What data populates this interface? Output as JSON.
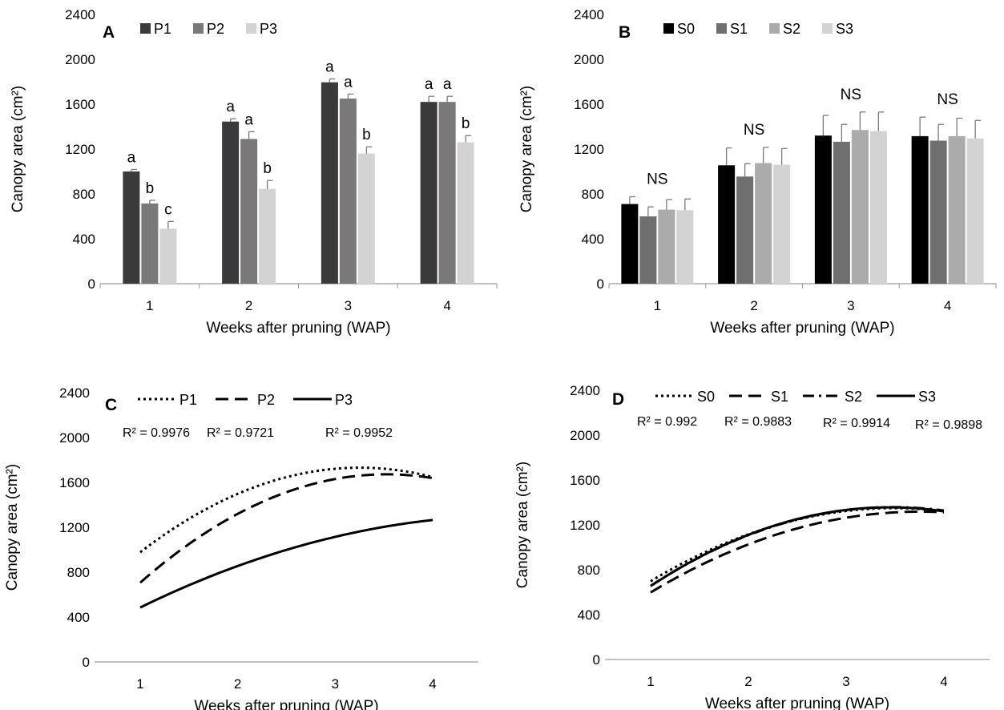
{
  "chart_data": [
    {
      "panel": "A",
      "type": "bar",
      "xlabel": "Weeks after pruning (WAP)",
      "ylabel": "Canopy area (cm²)",
      "ylim": [
        0,
        2400
      ],
      "yticks": [
        "0",
        "400",
        "800",
        "1200",
        "1600",
        "2000",
        "2400"
      ],
      "categories": [
        "1",
        "2",
        "3",
        "4"
      ],
      "legend_position": "top",
      "series": [
        {
          "name": "P1",
          "color": "#3a3a3c",
          "values": [
            1000,
            1445,
            1795,
            1620
          ],
          "errors": [
            18,
            25,
            30,
            50
          ],
          "letters": [
            "a",
            "a",
            "a",
            "a"
          ]
        },
        {
          "name": "P2",
          "color": "#7a7878",
          "values": [
            715,
            1290,
            1650,
            1620
          ],
          "errors": [
            28,
            65,
            40,
            50
          ],
          "letters": [
            "b",
            "a",
            "a",
            "a"
          ]
        },
        {
          "name": "P3",
          "color": "#d3d3d3",
          "values": [
            490,
            845,
            1160,
            1260
          ],
          "errors": [
            65,
            75,
            60,
            60
          ],
          "letters": [
            "c",
            "b",
            "b",
            "b"
          ]
        }
      ]
    },
    {
      "panel": "B",
      "type": "bar",
      "xlabel": "Weeks after pruning (WAP)",
      "ylabel": "Canopy area (cm²)",
      "ylim": [
        0,
        2400
      ],
      "yticks": [
        "0",
        "400",
        "800",
        "1200",
        "1600",
        "2000",
        "2400"
      ],
      "categories": [
        "1",
        "2",
        "3",
        "4"
      ],
      "legend_position": "top",
      "group_labels": [
        "NS",
        "NS",
        "NS",
        "NS"
      ],
      "series": [
        {
          "name": "S0",
          "color": "#000000",
          "values": [
            710,
            1055,
            1320,
            1315
          ],
          "errors": [
            65,
            155,
            180,
            170
          ]
        },
        {
          "name": "S1",
          "color": "#6f6f6f",
          "values": [
            600,
            955,
            1265,
            1275
          ],
          "errors": [
            85,
            115,
            155,
            145
          ]
        },
        {
          "name": "S2",
          "color": "#ababab",
          "values": [
            660,
            1075,
            1370,
            1315
          ],
          "errors": [
            90,
            140,
            160,
            160
          ]
        },
        {
          "name": "S3",
          "color": "#d3d3d3",
          "values": [
            655,
            1060,
            1360,
            1295
          ],
          "errors": [
            100,
            145,
            170,
            160
          ]
        }
      ]
    },
    {
      "panel": "C",
      "type": "line",
      "xlabel": "Weeks after pruning (WAP)",
      "ylabel": "Canopy area (cm²)",
      "ylim": [
        0,
        2400
      ],
      "xlim": [
        1,
        4
      ],
      "yticks": [
        "0",
        "400",
        "800",
        "1200",
        "1600",
        "2000",
        "2400"
      ],
      "xticks": [
        "1",
        "2",
        "3",
        "4"
      ],
      "x": [
        1,
        2,
        3,
        4
      ],
      "legend_position": "top",
      "series": [
        {
          "name": "P1",
          "dash": "3,4",
          "values": [
            980,
            1490,
            1730,
            1645
          ],
          "r2": "R² = 0.9976"
        },
        {
          "name": "P2",
          "dash": "16,8",
          "values": [
            710,
            1310,
            1640,
            1635
          ],
          "r2": "R² = 0.9721"
        },
        {
          "name": "P3",
          "dash": "none",
          "values": [
            485,
            855,
            1115,
            1265
          ],
          "r2": "R² = 0.9952"
        }
      ]
    },
    {
      "panel": "D",
      "type": "line",
      "xlabel": "Weeks after pruning (WAP)",
      "ylabel": "Canopy area (cm²)",
      "ylim": [
        0,
        2400
      ],
      "xlim": [
        1,
        4
      ],
      "yticks": [
        "0",
        "400",
        "800",
        "1200",
        "1600",
        "2000",
        "2400"
      ],
      "xticks": [
        "1",
        "2",
        "3",
        "4"
      ],
      "x": [
        1,
        2,
        3,
        4
      ],
      "legend_position": "top",
      "series": [
        {
          "name": "S0",
          "dash": "3,4",
          "values": [
            700,
            1110,
            1330,
            1320
          ],
          "r2": "R² = 0.992"
        },
        {
          "name": "S1",
          "dash": "16,8",
          "values": [
            600,
            1020,
            1270,
            1310
          ],
          "r2": "R² = 0.9883"
        },
        {
          "name": "S2",
          "dash": "14,6,3,6",
          "values": [
            660,
            1100,
            1340,
            1325
          ],
          "r2": "R² = 0.9914"
        },
        {
          "name": "S3",
          "dash": "none",
          "values": [
            655,
            1110,
            1335,
            1320
          ],
          "r2": "R² = 0.9898"
        }
      ]
    }
  ]
}
